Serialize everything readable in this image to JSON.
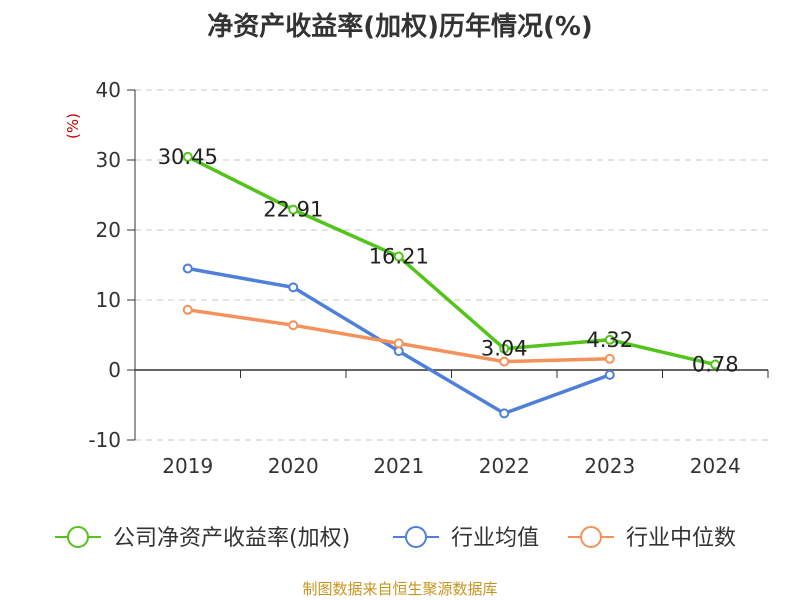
{
  "chart_data": {
    "type": "line",
    "title": "净资产收益率(加权)历年情况(%)",
    "ylabel": "(%)",
    "xlabel": "",
    "ylim": [
      -10,
      40
    ],
    "yticks": [
      -10,
      0,
      10,
      20,
      30,
      40
    ],
    "categories": [
      "2019",
      "2020",
      "2021",
      "2022",
      "2023",
      "2024"
    ],
    "grid": true,
    "legend_position": "bottom",
    "series": [
      {
        "name": "公司净资产收益率(加权)",
        "color": "#52c41a",
        "values": [
          30.45,
          22.91,
          16.21,
          3.04,
          4.32,
          0.78
        ],
        "labels": [
          "30.45",
          "22.91",
          "16.21",
          "3.04",
          "4.32",
          "0.78"
        ]
      },
      {
        "name": "行业均值",
        "color": "#4e7fd9",
        "values": [
          14.5,
          11.8,
          2.7,
          -6.2,
          -0.7,
          null
        ]
      },
      {
        "name": "行业中位数",
        "color": "#f5915a",
        "values": [
          8.6,
          6.4,
          3.8,
          1.2,
          1.6,
          null
        ]
      }
    ]
  },
  "source": "制图数据来自恒生聚源数据库"
}
